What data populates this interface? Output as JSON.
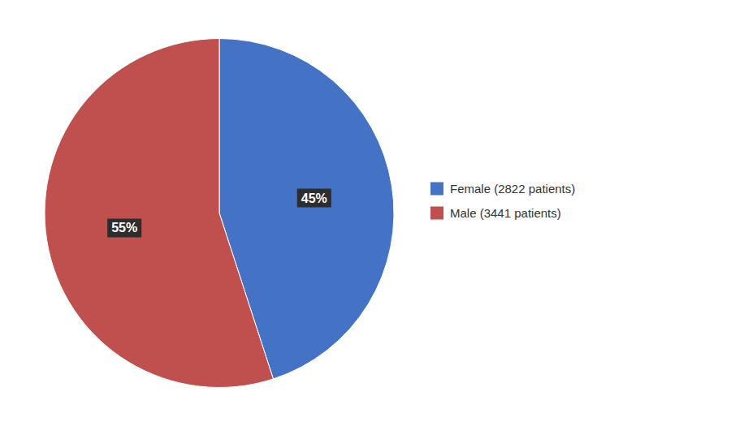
{
  "chart_data": {
    "type": "pie",
    "categories": [
      "Female (2822 patients)",
      "Male (3441 patients)"
    ],
    "values": [
      45,
      55
    ],
    "value_labels": [
      "45%",
      "55%"
    ],
    "colors": [
      "#4472C4",
      "#C0504D"
    ],
    "data_labels": true,
    "legend": "right"
  }
}
